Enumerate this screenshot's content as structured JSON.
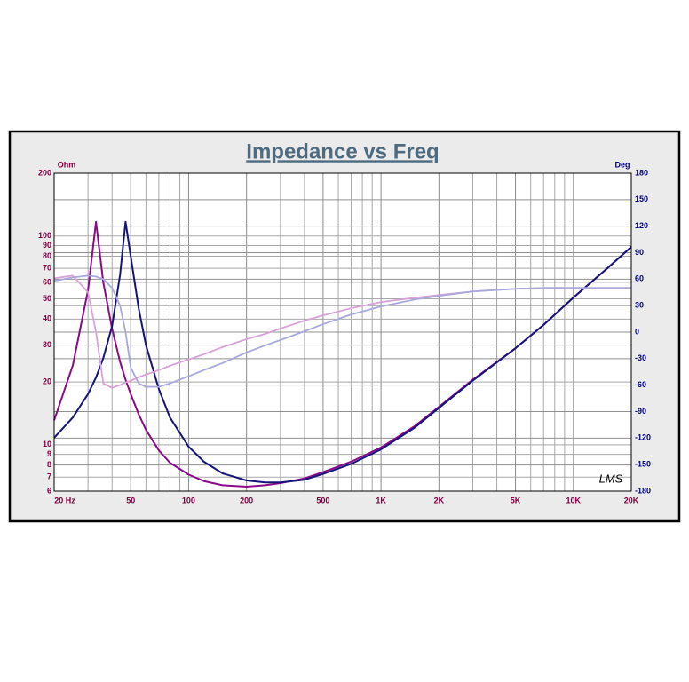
{
  "chart_data": {
    "type": "line",
    "title": "Impedance vs Freq",
    "y_label": "Ohm",
    "y2_label": "Deg",
    "annotation": "LMS",
    "x_log": true,
    "y_log": true,
    "grid": true,
    "x": [
      20,
      25,
      30,
      33,
      36,
      40,
      44,
      47,
      50,
      55,
      60,
      70,
      80,
      100,
      120,
      150,
      200,
      250,
      300,
      400,
      500,
      700,
      1000,
      1500,
      2000,
      3000,
      5000,
      7000,
      10000,
      15000,
      20000
    ],
    "xlim": [
      20,
      20000
    ],
    "xticks": [
      {
        "value": 20,
        "label": "20 Hz"
      },
      50,
      100,
      200,
      500,
      {
        "value": 1000,
        "label": "1K"
      },
      {
        "value": 2000,
        "label": "2K"
      },
      {
        "value": 5000,
        "label": "5K"
      },
      {
        "value": 10000,
        "label": "10K"
      },
      {
        "value": 20000,
        "label": "20K"
      }
    ],
    "xminor": [
      30,
      40,
      60,
      70,
      80,
      90,
      300,
      400,
      600,
      700,
      800,
      900,
      3000,
      4000,
      6000,
      7000,
      8000,
      9000
    ],
    "ylim": [
      6,
      200
    ],
    "yticks": [
      6,
      7,
      8,
      9,
      10,
      20,
      30,
      40,
      50,
      60,
      70,
      80,
      90,
      100,
      200
    ],
    "y2lim": [
      -180,
      180
    ],
    "y2ticks": [
      -180,
      -150,
      -120,
      -90,
      -60,
      -30,
      0,
      30,
      60,
      90,
      120,
      150,
      180
    ],
    "series": [
      {
        "color": "#8b0a8b",
        "values": [
          13.1,
          24,
          55,
          117,
          60,
          36,
          25,
          20.5,
          17.5,
          14,
          11.8,
          9.4,
          8.2,
          7.2,
          6.7,
          6.4,
          6.3,
          6.4,
          6.55,
          6.9,
          7.4,
          8.3,
          9.7,
          12.3,
          15.2,
          20.5,
          29,
          37.5,
          50.7,
          70,
          88.7
        ]
      },
      {
        "color": "#14147a",
        "values": [
          10.8,
          13.5,
          17.5,
          21,
          26,
          37,
          65,
          117,
          80,
          45,
          30,
          18.5,
          13.5,
          9.8,
          8.3,
          7.3,
          6.75,
          6.6,
          6.6,
          6.8,
          7.25,
          8.1,
          9.5,
          12.1,
          15,
          20.3,
          29,
          37.5,
          50.7,
          70,
          88.7
        ]
      },
      {
        "color": "#d8a2d8",
        "axis": "y2",
        "values": [
          61,
          64,
          45,
          0,
          -58,
          -63,
          -60,
          -57,
          -55,
          -51,
          -48,
          -43,
          -38,
          -31,
          -25,
          -17,
          -8,
          -2,
          4,
          13,
          19,
          27,
          34,
          39,
          42,
          46,
          49,
          50,
          50,
          50,
          50
        ]
      },
      {
        "color": "#a8a8dc",
        "axis": "y2",
        "values": [
          58,
          62,
          64,
          63,
          60,
          50,
          30,
          0,
          -40,
          -58,
          -62,
          -62,
          -58,
          -50,
          -43,
          -35,
          -23,
          -15,
          -9,
          1,
          9,
          20,
          29,
          37,
          41,
          46,
          49,
          50,
          50,
          50,
          50
        ]
      }
    ]
  }
}
